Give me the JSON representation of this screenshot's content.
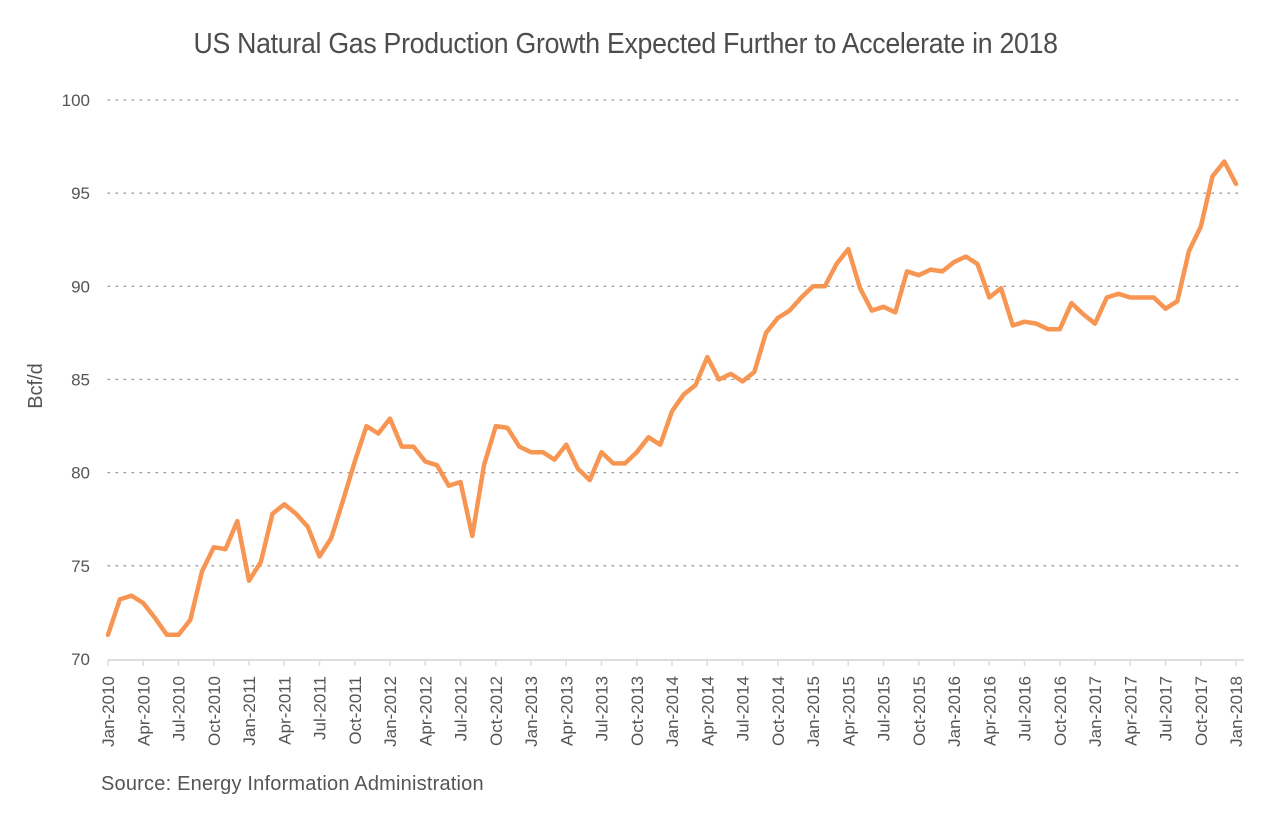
{
  "chart_data": {
    "type": "line",
    "title": "US Natural Gas Production Growth Expected Further to Accelerate in 2018",
    "xlabel": "",
    "ylabel": "Bcf/d",
    "ylim": [
      70,
      100
    ],
    "yticks": [
      70,
      75,
      80,
      85,
      90,
      95,
      100
    ],
    "grid": "horizontal dotted",
    "legend": "none",
    "x_tick_labels": [
      "Jan-2010",
      "Apr-2010",
      "Jul-2010",
      "Oct-2010",
      "Jan-2011",
      "Apr-2011",
      "Jul-2011",
      "Oct-2011",
      "Jan-2012",
      "Apr-2012",
      "Jul-2012",
      "Oct-2012",
      "Jan-2013",
      "Apr-2013",
      "Jul-2013",
      "Oct-2013",
      "Jan-2014",
      "Apr-2014",
      "Jul-2014",
      "Oct-2014",
      "Jan-2015",
      "Apr-2015",
      "Jul-2015",
      "Oct-2015",
      "Jan-2016",
      "Apr-2016",
      "Jul-2016",
      "Oct-2016",
      "Jan-2017",
      "Apr-2017",
      "Jul-2017",
      "Oct-2017",
      "Jan-2018"
    ],
    "x_start": "Jan-2010",
    "x_end": "Jan-2018",
    "x_frequency": "monthly",
    "series": [
      {
        "name": "US Natural Gas Production",
        "color": "#f79552",
        "values": [
          71.3,
          73.2,
          73.4,
          73.0,
          72.2,
          71.3,
          71.3,
          72.1,
          74.7,
          76.0,
          75.9,
          77.4,
          74.2,
          75.2,
          77.8,
          78.3,
          77.8,
          77.1,
          75.5,
          76.5,
          78.5,
          80.6,
          82.5,
          82.1,
          82.9,
          81.4,
          81.4,
          80.6,
          80.4,
          79.3,
          79.5,
          76.6,
          80.4,
          82.5,
          82.4,
          81.4,
          81.1,
          81.1,
          80.7,
          81.5,
          80.2,
          79.6,
          81.1,
          80.5,
          80.5,
          81.1,
          81.9,
          81.5,
          83.3,
          84.2,
          84.7,
          86.2,
          85.0,
          85.3,
          84.9,
          85.4,
          87.5,
          88.3,
          88.7,
          89.4,
          90.0,
          90.0,
          91.2,
          92.0,
          89.9,
          88.7,
          88.9,
          88.6,
          90.8,
          90.6,
          90.9,
          90.8,
          91.3,
          91.6,
          91.2,
          89.4,
          89.9,
          87.9,
          88.1,
          88.0,
          87.7,
          87.7,
          89.1,
          88.5,
          88.0,
          89.4,
          89.6,
          89.4,
          89.4,
          89.4,
          88.8,
          89.2,
          91.9,
          93.2,
          95.9,
          96.7,
          95.5
        ]
      }
    ],
    "source": "Source: Energy Information Administration"
  },
  "colors": {
    "line": "#f79552",
    "grid": "#999999",
    "axis": "#dddddd",
    "text": "#555555"
  }
}
